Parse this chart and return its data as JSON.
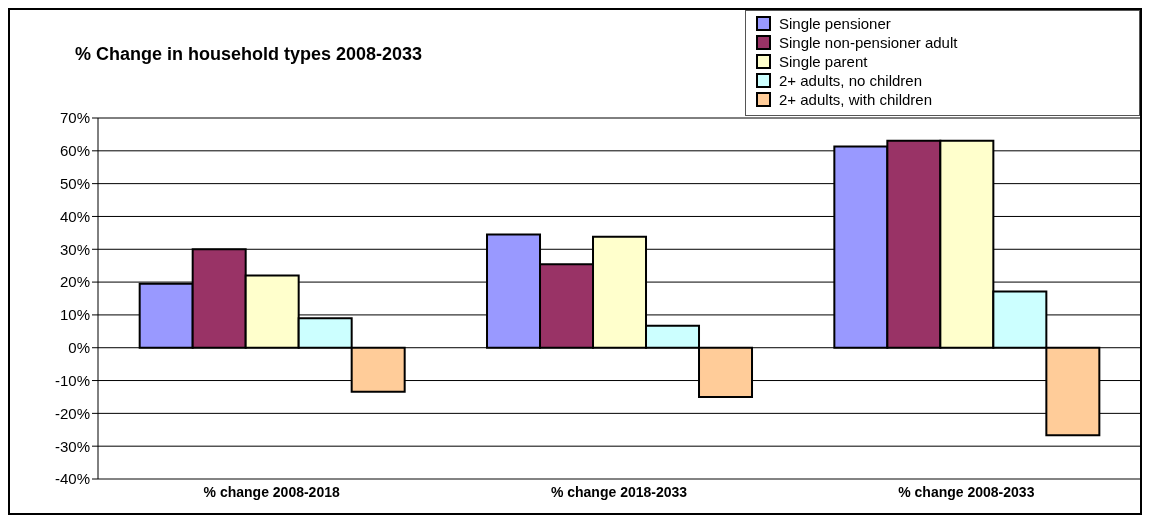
{
  "chart_data": {
    "type": "bar",
    "title": "% Change in household types 2008-2033",
    "categories": [
      "% change 2008-2018",
      "% change 2018-2033",
      "% change 2008-2033"
    ],
    "series": [
      {
        "name": "Single pensioner",
        "color": "#9999ff",
        "values": [
          19.5,
          34.5,
          61.3
        ]
      },
      {
        "name": "Single non-pensioner adult",
        "color": "#993366",
        "values": [
          30,
          25.4,
          63.1
        ]
      },
      {
        "name": "Single parent",
        "color": "#ffffcc",
        "values": [
          22,
          33.8,
          63.1
        ]
      },
      {
        "name": "2+ adults, no children",
        "color": "#ccffff",
        "values": [
          9,
          6.7,
          17.1
        ]
      },
      {
        "name": "2+ adults, with children",
        "color": "#ffcc99",
        "values": [
          -13.4,
          -15,
          -26.7
        ]
      }
    ],
    "ylim": [
      -40,
      70
    ],
    "yticks": [
      {
        "value": -40,
        "label": "-40%"
      },
      {
        "value": -30,
        "label": "-30%"
      },
      {
        "value": -20,
        "label": "-20%"
      },
      {
        "value": -10,
        "label": "-10%"
      },
      {
        "value": 0,
        "label": "0%"
      },
      {
        "value": 10,
        "label": "10%"
      },
      {
        "value": 20,
        "label": "20%"
      },
      {
        "value": 30,
        "label": "30%"
      },
      {
        "value": 40,
        "label": "40%"
      },
      {
        "value": 50,
        "label": "50%"
      },
      {
        "value": 60,
        "label": "60%"
      },
      {
        "value": 70,
        "label": "70%"
      }
    ],
    "grid": "y",
    "legend": "top right"
  }
}
